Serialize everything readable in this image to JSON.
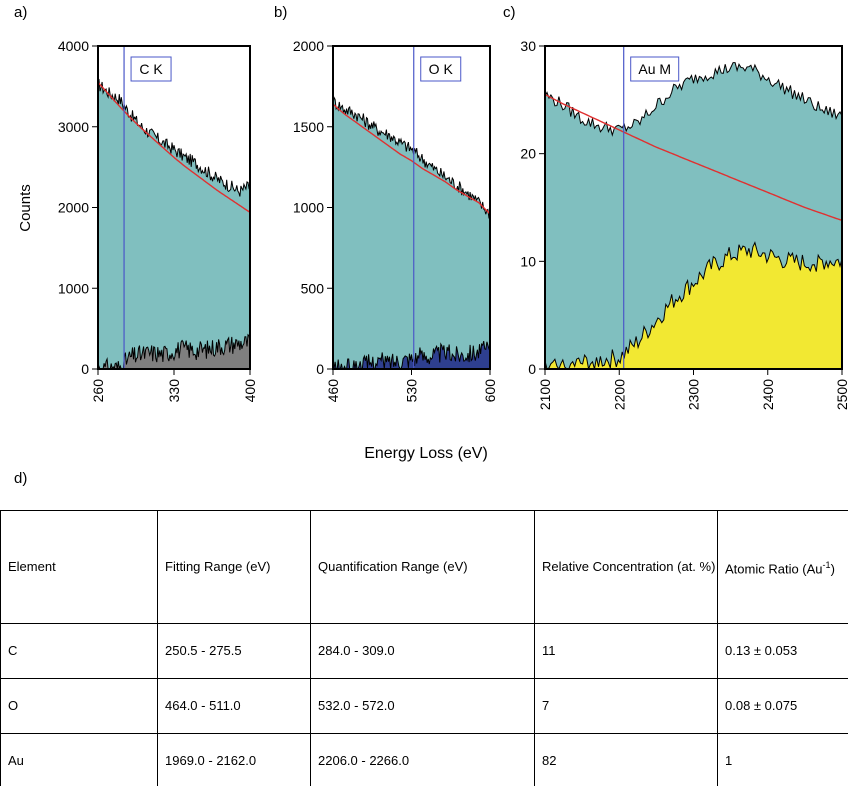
{
  "panel_letters": {
    "a": "a)",
    "b": "b)",
    "c": "c)",
    "d": "d)"
  },
  "chart_data": [
    {
      "type": "area",
      "panel": "a)",
      "edge_label": "C K",
      "edge_energy": 284,
      "xlabel": "Energy Loss (eV)",
      "ylabel": "Counts",
      "xlim": [
        260,
        400
      ],
      "ylim": [
        0,
        4000
      ],
      "xticks": [
        260,
        330,
        400
      ],
      "yticks": [
        0,
        1000,
        2000,
        3000,
        4000
      ],
      "grid": false,
      "series": [
        {
          "role": "measured",
          "color": "#000000",
          "fill": "#80bfbf",
          "x": [
            260,
            270,
            280,
            290,
            300,
            310,
            320,
            330,
            340,
            350,
            360,
            370,
            380,
            390,
            400
          ],
          "y": [
            3530,
            3420,
            3340,
            3150,
            3000,
            2900,
            2800,
            2720,
            2620,
            2550,
            2450,
            2350,
            2280,
            2200,
            2270
          ]
        },
        {
          "role": "background_fit",
          "color": "#e03030",
          "x": [
            260,
            270,
            280,
            290,
            300,
            310,
            320,
            330,
            340,
            350,
            360,
            370,
            380,
            390,
            400
          ],
          "y": [
            3550,
            3400,
            3250,
            3110,
            2980,
            2860,
            2740,
            2620,
            2510,
            2410,
            2310,
            2210,
            2120,
            2030,
            1940
          ]
        },
        {
          "role": "edge_signal",
          "color": "#000000",
          "fill": "#7f7f7f",
          "x": [
            260,
            270,
            280,
            290,
            300,
            310,
            320,
            330,
            340,
            350,
            360,
            370,
            380,
            390,
            400
          ],
          "y": [
            0,
            10,
            20,
            150,
            180,
            200,
            180,
            230,
            250,
            230,
            240,
            280,
            300,
            320,
            330
          ]
        }
      ]
    },
    {
      "type": "area",
      "panel": "b)",
      "edge_label": "O K",
      "edge_energy": 532,
      "xlabel": "Energy Loss (eV)",
      "ylabel": "",
      "xlim": [
        460,
        600
      ],
      "ylim": [
        0,
        2000
      ],
      "xticks": [
        460,
        530,
        600
      ],
      "yticks": [
        0,
        500,
        1000,
        1500,
        2000
      ],
      "grid": false,
      "series": [
        {
          "role": "measured",
          "color": "#000000",
          "fill": "#80bfbf",
          "x": [
            460,
            470,
            480,
            490,
            500,
            510,
            520,
            530,
            540,
            550,
            560,
            570,
            580,
            590,
            600
          ],
          "y": [
            1660,
            1610,
            1580,
            1530,
            1480,
            1450,
            1400,
            1360,
            1300,
            1240,
            1190,
            1140,
            1090,
            1030,
            960
          ]
        },
        {
          "role": "background_fit",
          "color": "#e03030",
          "x": [
            460,
            470,
            480,
            490,
            500,
            510,
            520,
            530,
            540,
            550,
            560,
            570,
            580,
            590,
            600
          ],
          "y": [
            1640,
            1580,
            1530,
            1480,
            1430,
            1380,
            1330,
            1290,
            1240,
            1200,
            1160,
            1110,
            1070,
            1030,
            960
          ]
        },
        {
          "role": "edge_signal",
          "color": "#000000",
          "fill": "#2e3f8f",
          "x": [
            460,
            470,
            480,
            490,
            500,
            510,
            520,
            530,
            540,
            550,
            560,
            570,
            580,
            590,
            600
          ],
          "y": [
            0,
            0,
            10,
            30,
            50,
            40,
            60,
            70,
            80,
            90,
            100,
            90,
            100,
            110,
            120
          ]
        }
      ]
    },
    {
      "type": "area",
      "panel": "c)",
      "edge_label": "Au M",
      "edge_energy": 2206,
      "xlabel": "Energy Loss (eV)",
      "ylabel": "",
      "xlim": [
        2100,
        2500
      ],
      "ylim": [
        0,
        30
      ],
      "xticks": [
        2100,
        2200,
        2300,
        2400,
        2500
      ],
      "yticks": [
        0,
        10,
        20,
        30
      ],
      "grid": false,
      "series": [
        {
          "role": "measured",
          "color": "#000000",
          "fill": "#80bfbf",
          "x": [
            2100,
            2125,
            2150,
            2175,
            2200,
            2225,
            2250,
            2275,
            2300,
            2325,
            2350,
            2375,
            2400,
            2425,
            2450,
            2475,
            2500
          ],
          "y": [
            25.5,
            24.5,
            23.2,
            22.5,
            22.2,
            22.8,
            24.5,
            26.0,
            27.0,
            27.5,
            28.0,
            28.0,
            27.0,
            26.0,
            25.0,
            24.0,
            23.5
          ]
        },
        {
          "role": "background_fit",
          "color": "#e03030",
          "x": [
            2100,
            2125,
            2150,
            2175,
            2200,
            2225,
            2250,
            2275,
            2300,
            2325,
            2350,
            2375,
            2400,
            2425,
            2450,
            2475,
            2500
          ],
          "y": [
            25.5,
            24.6,
            23.8,
            23.0,
            22.2,
            21.4,
            20.6,
            19.9,
            19.2,
            18.5,
            17.8,
            17.1,
            16.4,
            15.7,
            15.0,
            14.4,
            13.8
          ]
        },
        {
          "role": "edge_signal",
          "color": "#000000",
          "fill": "#f2e832",
          "x": [
            2100,
            2125,
            2150,
            2175,
            2200,
            2225,
            2250,
            2275,
            2300,
            2325,
            2350,
            2375,
            2400,
            2425,
            2450,
            2475,
            2500
          ],
          "y": [
            0,
            0.2,
            0.5,
            0.8,
            1.0,
            2.5,
            4.5,
            6.5,
            8.0,
            9.5,
            10.5,
            11.0,
            10.5,
            10.0,
            9.8,
            10.0,
            10.0
          ]
        }
      ]
    }
  ],
  "table": {
    "headers": [
      "Element",
      "Fitting Range (eV)",
      "Quantification Range (eV)",
      "Relative Concentration (at. %)",
      "Atomic Ratio (Au",
      "-1",
      ")"
    ],
    "rows": [
      {
        "element": "C",
        "fitting": "250.5 - 275.5",
        "quant": "284.0 - 309.0",
        "conc": "11",
        "ratio": "0.13 ± 0.053"
      },
      {
        "element": "O",
        "fitting": "464.0 - 511.0",
        "quant": "532.0 - 572.0",
        "conc": "7",
        "ratio": "0.08 ± 0.075"
      },
      {
        "element": "Au",
        "fitting": "1969.0 - 2162.0",
        "quant": "2206.0 - 2266.0",
        "conc": "82",
        "ratio": "1"
      }
    ]
  }
}
